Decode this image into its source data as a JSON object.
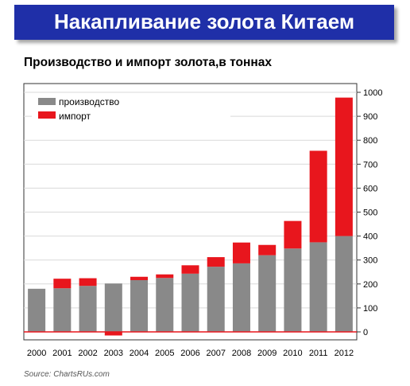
{
  "header": {
    "title": "Накапливание золота Китаем"
  },
  "chart_data": {
    "type": "bar",
    "stacked": true,
    "title": "Производство и импорт золота,в тоннах",
    "categories": [
      "2000",
      "2001",
      "2002",
      "2003",
      "2004",
      "2005",
      "2006",
      "2007",
      "2008",
      "2009",
      "2010",
      "2011",
      "2012"
    ],
    "series": [
      {
        "name": "производство",
        "color": "#898989",
        "values": [
          180,
          182,
          192,
          202,
          216,
          225,
          243,
          272,
          286,
          320,
          348,
          374,
          400
        ]
      },
      {
        "name": "импорт",
        "color": "#e8161d",
        "values": [
          0,
          40,
          32,
          -15,
          14,
          15,
          35,
          40,
          87,
          43,
          115,
          382,
          578
        ]
      }
    ],
    "ylim": [
      -40,
      1000
    ],
    "yticks": [
      0,
      100,
      200,
      300,
      400,
      500,
      600,
      700,
      800,
      900,
      1000
    ],
    "y_axis_position": "right",
    "legend": "top-left",
    "zero_line_color": "#e8161d"
  },
  "source": "Source: ChartsRUs.com"
}
